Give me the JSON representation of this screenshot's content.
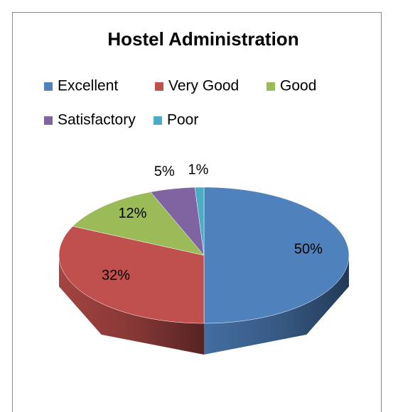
{
  "chart_data": {
    "type": "pie",
    "title": "Hostel Administration",
    "categories": [
      "Excellent",
      "Very Good",
      "Good",
      "Satisfactory",
      "Poor"
    ],
    "values": [
      50,
      32,
      12,
      5,
      1
    ],
    "value_labels": [
      "50%",
      "32%",
      "12%",
      "5%",
      "1%"
    ],
    "colors": [
      "#4f81bd",
      "#c0504d",
      "#9bbb59",
      "#8064a2",
      "#4bacc6"
    ],
    "legend": "top"
  }
}
